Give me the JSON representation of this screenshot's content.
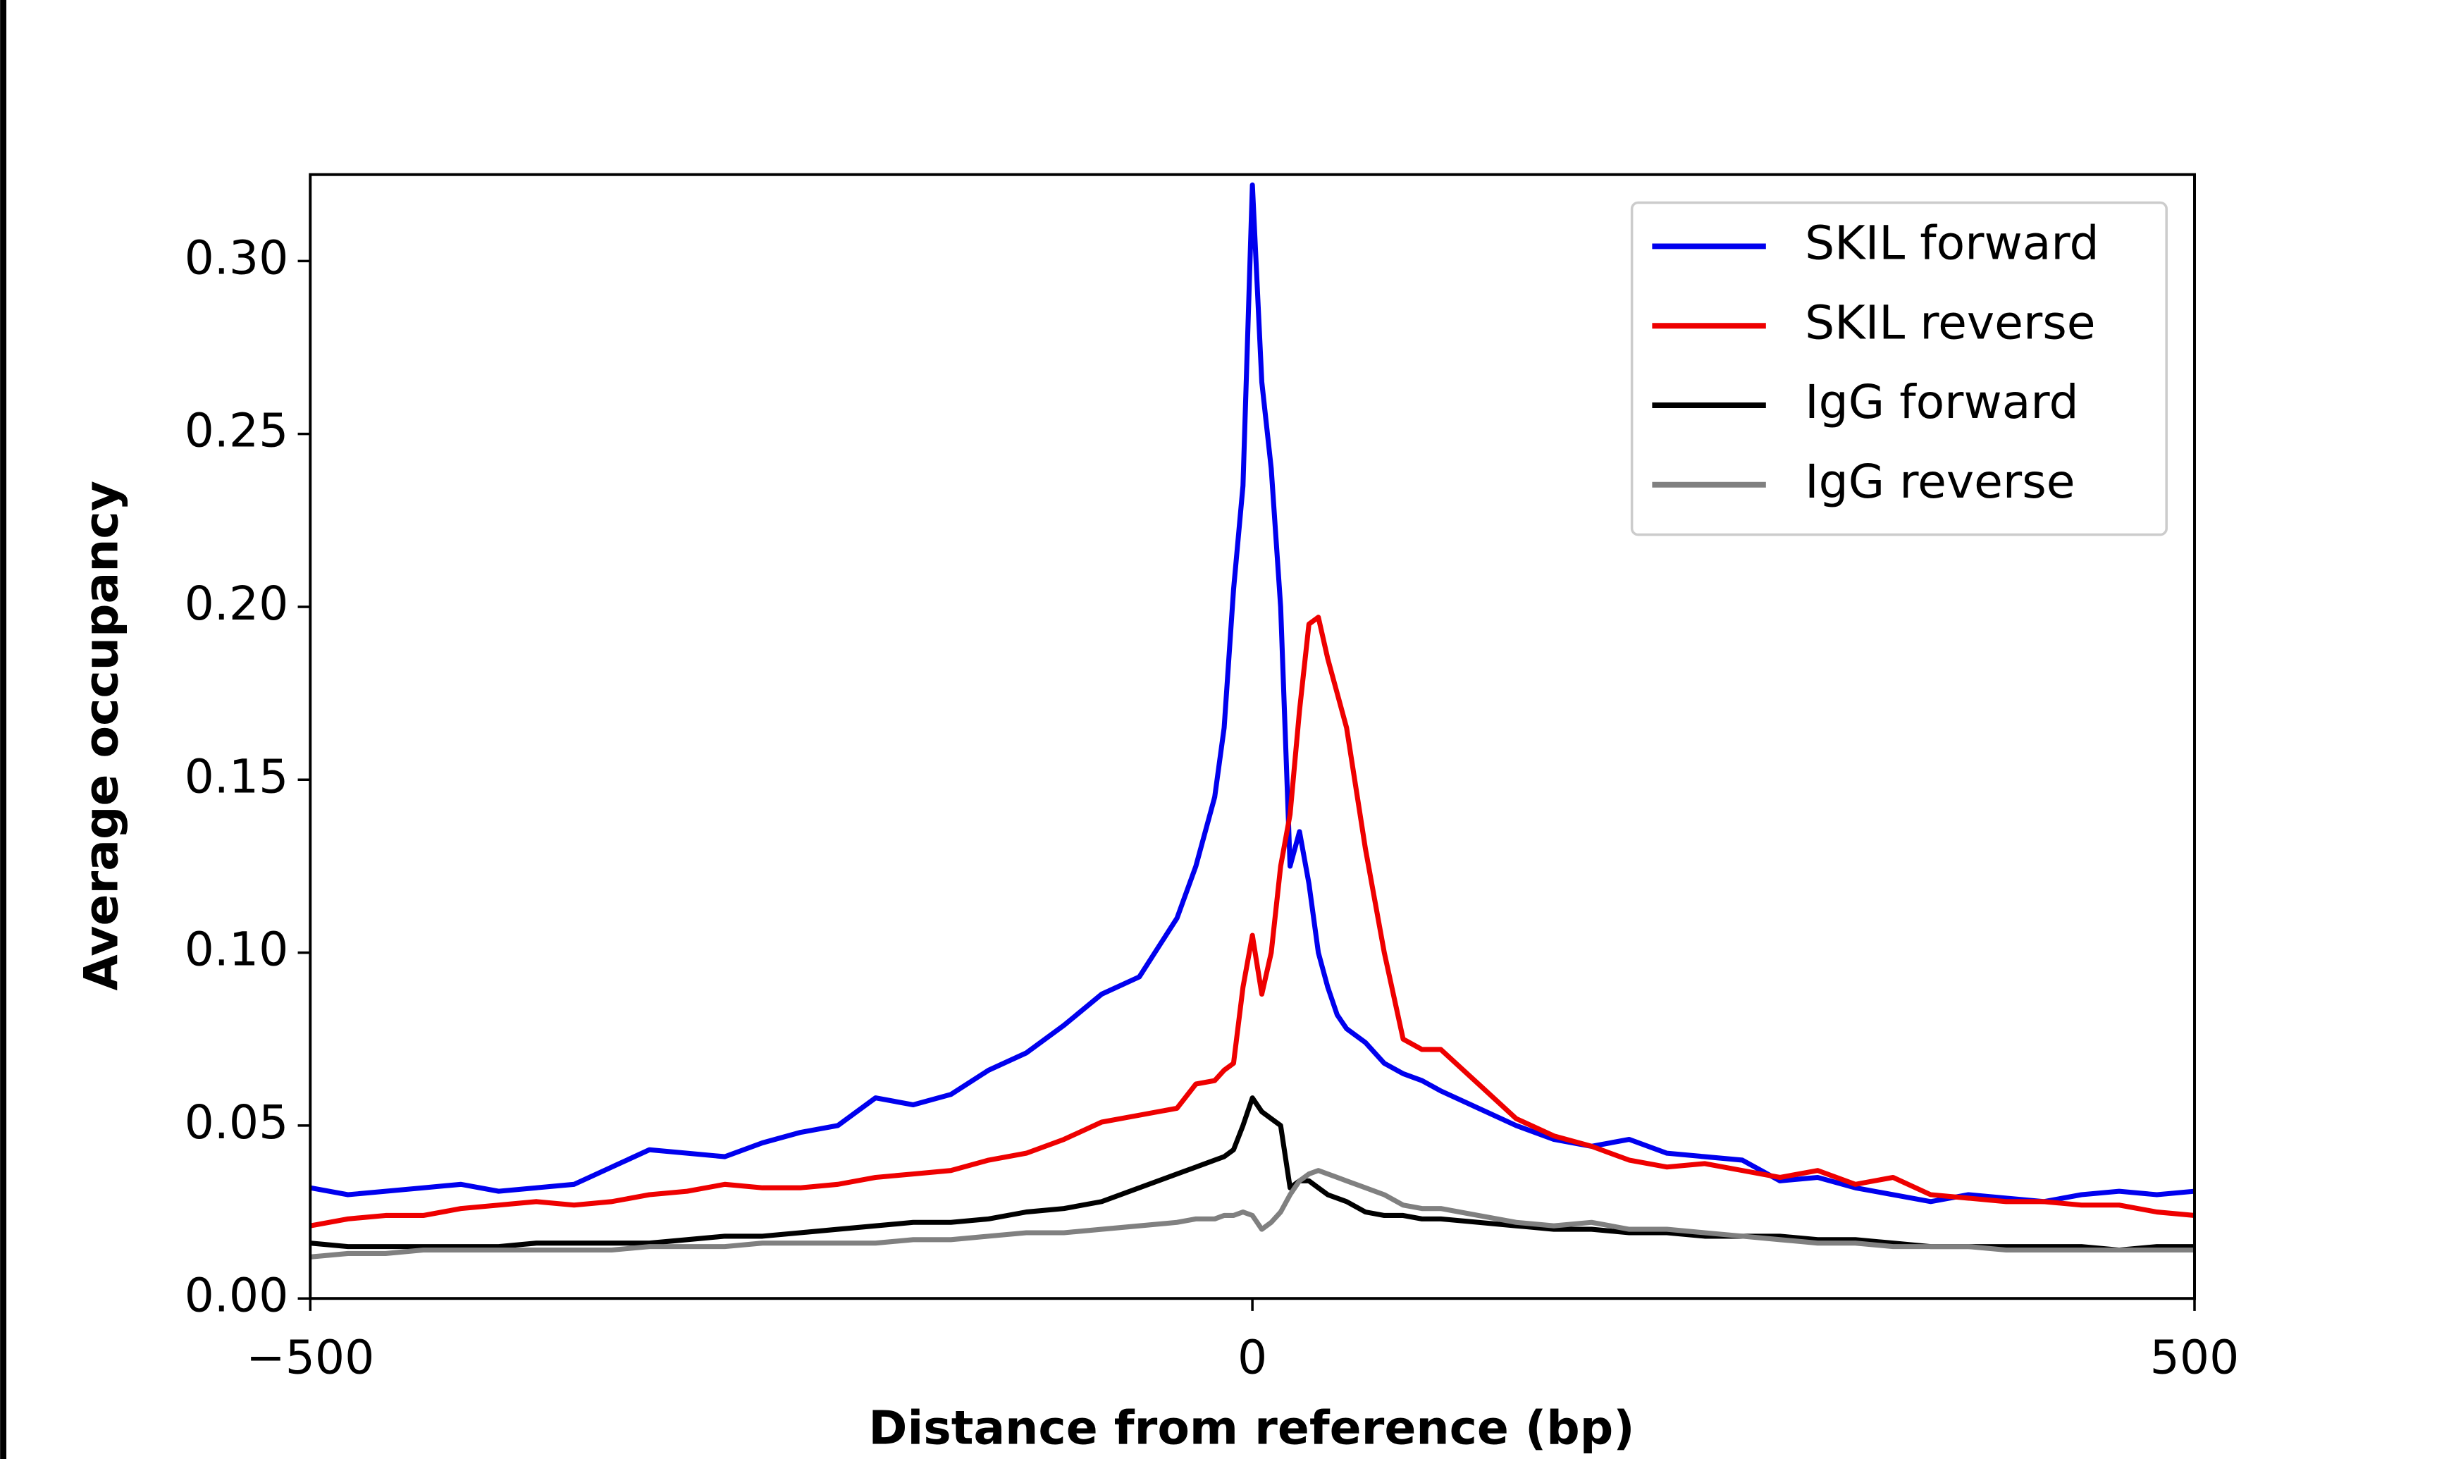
{
  "chart_data": {
    "type": "line",
    "xlabel": "Distance from reference (bp)",
    "ylabel": "Average occupancy",
    "x": [
      -500,
      -480,
      -460,
      -440,
      -420,
      -400,
      -380,
      -360,
      -340,
      -320,
      -300,
      -280,
      -260,
      -240,
      -220,
      -200,
      -180,
      -160,
      -140,
      -120,
      -100,
      -80,
      -60,
      -40,
      -30,
      -20,
      -15,
      -10,
      -5,
      0,
      5,
      10,
      15,
      20,
      25,
      30,
      35,
      40,
      45,
      50,
      60,
      70,
      80,
      90,
      100,
      120,
      140,
      160,
      180,
      200,
      220,
      240,
      260,
      280,
      300,
      320,
      340,
      360,
      380,
      400,
      420,
      440,
      460,
      480,
      500
    ],
    "series": [
      {
        "name": "SKIL forward",
        "color": "#0000ee",
        "values": [
          0.032,
          0.03,
          0.031,
          0.032,
          0.033,
          0.031,
          0.032,
          0.033,
          0.038,
          0.043,
          0.042,
          0.041,
          0.045,
          0.048,
          0.05,
          0.058,
          0.056,
          0.059,
          0.066,
          0.071,
          0.079,
          0.088,
          0.093,
          0.11,
          0.125,
          0.145,
          0.165,
          0.205,
          0.235,
          0.322,
          0.265,
          0.24,
          0.2,
          0.125,
          0.135,
          0.12,
          0.1,
          0.09,
          0.082,
          0.078,
          0.074,
          0.068,
          0.065,
          0.063,
          0.06,
          0.055,
          0.05,
          0.046,
          0.044,
          0.046,
          0.042,
          0.041,
          0.04,
          0.034,
          0.035,
          0.032,
          0.03,
          0.028,
          0.03,
          0.029,
          0.028,
          0.03,
          0.031,
          0.03,
          0.031
        ]
      },
      {
        "name": "SKIL reverse",
        "color": "#ee0000",
        "values": [
          0.021,
          0.023,
          0.024,
          0.024,
          0.026,
          0.027,
          0.028,
          0.027,
          0.028,
          0.03,
          0.031,
          0.033,
          0.032,
          0.032,
          0.033,
          0.035,
          0.036,
          0.037,
          0.04,
          0.042,
          0.046,
          0.051,
          0.053,
          0.055,
          0.062,
          0.063,
          0.066,
          0.068,
          0.09,
          0.105,
          0.088,
          0.1,
          0.125,
          0.14,
          0.17,
          0.195,
          0.197,
          0.185,
          0.175,
          0.165,
          0.13,
          0.1,
          0.075,
          0.072,
          0.072,
          0.062,
          0.052,
          0.047,
          0.044,
          0.04,
          0.038,
          0.039,
          0.037,
          0.035,
          0.037,
          0.033,
          0.035,
          0.03,
          0.029,
          0.028,
          0.028,
          0.027,
          0.027,
          0.025,
          0.024
        ]
      },
      {
        "name": "IgG forward",
        "color": "#000000",
        "values": [
          0.016,
          0.015,
          0.015,
          0.015,
          0.015,
          0.015,
          0.016,
          0.016,
          0.016,
          0.016,
          0.017,
          0.018,
          0.018,
          0.019,
          0.02,
          0.021,
          0.022,
          0.022,
          0.023,
          0.025,
          0.026,
          0.028,
          0.032,
          0.036,
          0.038,
          0.04,
          0.041,
          0.043,
          0.05,
          0.058,
          0.054,
          0.052,
          0.05,
          0.032,
          0.034,
          0.034,
          0.032,
          0.03,
          0.029,
          0.028,
          0.025,
          0.024,
          0.024,
          0.023,
          0.023,
          0.022,
          0.021,
          0.02,
          0.02,
          0.019,
          0.019,
          0.018,
          0.018,
          0.018,
          0.017,
          0.017,
          0.016,
          0.015,
          0.015,
          0.015,
          0.015,
          0.015,
          0.014,
          0.015,
          0.015
        ]
      },
      {
        "name": "IgG reverse",
        "color": "#808080",
        "values": [
          0.012,
          0.013,
          0.013,
          0.014,
          0.014,
          0.014,
          0.014,
          0.014,
          0.014,
          0.015,
          0.015,
          0.015,
          0.016,
          0.016,
          0.016,
          0.016,
          0.017,
          0.017,
          0.018,
          0.019,
          0.019,
          0.02,
          0.021,
          0.022,
          0.023,
          0.023,
          0.024,
          0.024,
          0.025,
          0.024,
          0.02,
          0.022,
          0.025,
          0.03,
          0.034,
          0.036,
          0.037,
          0.036,
          0.035,
          0.034,
          0.032,
          0.03,
          0.027,
          0.026,
          0.026,
          0.024,
          0.022,
          0.021,
          0.022,
          0.02,
          0.02,
          0.019,
          0.018,
          0.017,
          0.016,
          0.016,
          0.015,
          0.015,
          0.015,
          0.014,
          0.014,
          0.014,
          0.014,
          0.014,
          0.014
        ]
      }
    ],
    "xlim": [
      -500,
      500
    ],
    "ylim": [
      0,
      0.325
    ],
    "xticks": [
      {
        "value": -500,
        "label": "−500"
      },
      0,
      500
    ],
    "yticks": [
      {
        "value": 0,
        "label": "0.00"
      },
      0.05,
      {
        "value": 0.1,
        "label": "0.10"
      },
      0.15,
      {
        "value": 0.2,
        "label": "0.20"
      },
      0.25,
      {
        "value": 0.3,
        "label": "0.30"
      }
    ],
    "legend": "upper right"
  }
}
